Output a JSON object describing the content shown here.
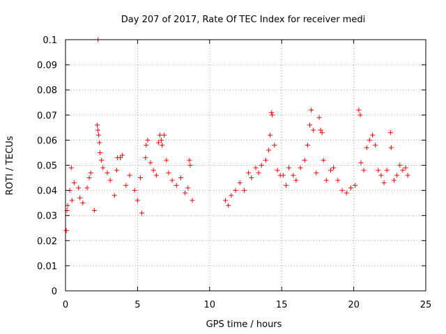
{
  "chart_data": {
    "type": "scatter",
    "title": "Day 207 of 2017, Rate Of TEC Index for receiver medi",
    "xlabel": "GPS time / hours",
    "ylabel": "ROTI / TECUs",
    "xlim": [
      0,
      25
    ],
    "ylim": [
      0,
      0.1
    ],
    "xticks": [
      "0",
      "5",
      "10",
      "15",
      "20",
      "25"
    ],
    "yticks": [
      "0",
      "0.01",
      "0.02",
      "0.03",
      "0.04",
      "0.05",
      "0.06",
      "0.07",
      "0.08",
      "0.09",
      "0.1"
    ],
    "grid": true,
    "marker": "+",
    "color": "#ff0000",
    "points": [
      [
        0.05,
        0.024
      ],
      [
        0.1,
        0.032
      ],
      [
        0.15,
        0.034
      ],
      [
        0.3,
        0.04
      ],
      [
        0.45,
        0.036
      ],
      [
        0.4,
        0.049
      ],
      [
        0.6,
        0.043
      ],
      [
        0.9,
        0.041
      ],
      [
        1.0,
        0.037
      ],
      [
        1.2,
        0.035
      ],
      [
        1.5,
        0.041
      ],
      [
        1.65,
        0.045
      ],
      [
        1.75,
        0.047
      ],
      [
        2.0,
        0.032
      ],
      [
        2.2,
        0.066
      ],
      [
        2.25,
        0.064
      ],
      [
        2.3,
        0.062
      ],
      [
        2.25,
        0.1
      ],
      [
        2.4,
        0.055
      ],
      [
        2.5,
        0.052
      ],
      [
        2.35,
        0.059
      ],
      [
        2.6,
        0.049
      ],
      [
        2.9,
        0.047
      ],
      [
        3.1,
        0.044
      ],
      [
        3.4,
        0.038
      ],
      [
        3.55,
        0.048
      ],
      [
        3.6,
        0.053
      ],
      [
        3.8,
        0.053
      ],
      [
        3.95,
        0.054
      ],
      [
        4.2,
        0.042
      ],
      [
        4.45,
        0.046
      ],
      [
        4.8,
        0.04
      ],
      [
        5.0,
        0.036
      ],
      [
        5.2,
        0.045
      ],
      [
        5.3,
        0.031
      ],
      [
        5.55,
        0.053
      ],
      [
        5.6,
        0.058
      ],
      [
        5.7,
        0.06
      ],
      [
        5.9,
        0.051
      ],
      [
        6.1,
        0.048
      ],
      [
        6.3,
        0.046
      ],
      [
        6.45,
        0.059
      ],
      [
        6.55,
        0.062
      ],
      [
        6.65,
        0.06
      ],
      [
        6.7,
        0.058
      ],
      [
        6.85,
        0.062
      ],
      [
        7.0,
        0.052
      ],
      [
        7.15,
        0.047
      ],
      [
        7.4,
        0.044
      ],
      [
        7.7,
        0.042
      ],
      [
        8.0,
        0.045
      ],
      [
        8.3,
        0.039
      ],
      [
        8.5,
        0.041
      ],
      [
        8.6,
        0.052
      ],
      [
        8.65,
        0.05
      ],
      [
        8.8,
        0.036
      ],
      [
        11.1,
        0.036
      ],
      [
        11.3,
        0.034
      ],
      [
        11.5,
        0.038
      ],
      [
        11.8,
        0.04
      ],
      [
        12.1,
        0.043
      ],
      [
        12.4,
        0.04
      ],
      [
        12.7,
        0.047
      ],
      [
        12.9,
        0.045
      ],
      [
        13.2,
        0.049
      ],
      [
        13.4,
        0.047
      ],
      [
        13.6,
        0.05
      ],
      [
        13.9,
        0.052
      ],
      [
        14.1,
        0.056
      ],
      [
        14.2,
        0.062
      ],
      [
        14.3,
        0.071
      ],
      [
        14.35,
        0.07
      ],
      [
        14.5,
        0.058
      ],
      [
        14.7,
        0.048
      ],
      [
        14.9,
        0.046
      ],
      [
        15.1,
        0.046
      ],
      [
        15.3,
        0.042
      ],
      [
        15.5,
        0.049
      ],
      [
        15.8,
        0.046
      ],
      [
        16.0,
        0.044
      ],
      [
        16.3,
        0.049
      ],
      [
        16.6,
        0.052
      ],
      [
        16.8,
        0.058
      ],
      [
        16.95,
        0.066
      ],
      [
        17.05,
        0.072
      ],
      [
        17.2,
        0.064
      ],
      [
        17.4,
        0.047
      ],
      [
        17.6,
        0.069
      ],
      [
        17.7,
        0.064
      ],
      [
        17.8,
        0.063
      ],
      [
        17.9,
        0.052
      ],
      [
        18.1,
        0.044
      ],
      [
        18.4,
        0.048
      ],
      [
        18.6,
        0.049
      ],
      [
        18.9,
        0.044
      ],
      [
        19.2,
        0.04
      ],
      [
        19.5,
        0.039
      ],
      [
        19.8,
        0.041
      ],
      [
        20.1,
        0.042
      ],
      [
        20.35,
        0.072
      ],
      [
        20.45,
        0.07
      ],
      [
        20.5,
        0.051
      ],
      [
        20.7,
        0.048
      ],
      [
        20.9,
        0.057
      ],
      [
        21.1,
        0.06
      ],
      [
        21.3,
        0.062
      ],
      [
        21.5,
        0.058
      ],
      [
        21.7,
        0.048
      ],
      [
        21.9,
        0.046
      ],
      [
        22.1,
        0.043
      ],
      [
        22.3,
        0.048
      ],
      [
        22.55,
        0.063
      ],
      [
        22.6,
        0.057
      ],
      [
        22.8,
        0.044
      ],
      [
        23.0,
        0.046
      ],
      [
        23.2,
        0.05
      ],
      [
        23.4,
        0.048
      ],
      [
        23.6,
        0.049
      ],
      [
        23.75,
        0.046
      ]
    ]
  }
}
